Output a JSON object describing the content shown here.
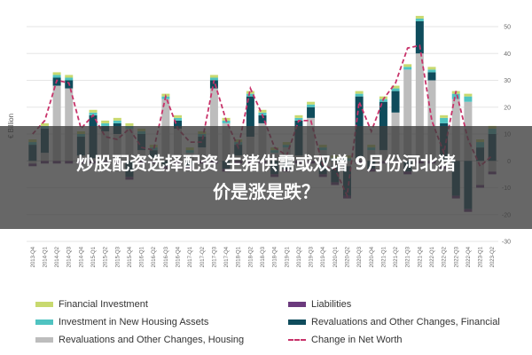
{
  "banner": {
    "line1": "炒股配资选择配资 生猪供需或双增 9月份河北猪",
    "line2": "价是涨是跌？"
  },
  "legend": [
    {
      "key": "financial_investment",
      "label": "Financial Investment",
      "color": "#c8d96f",
      "style": "bar"
    },
    {
      "key": "liabilities",
      "label": "Liabilities",
      "color": "#6b3a7d",
      "style": "bar"
    },
    {
      "key": "investment_new_housing",
      "label": "Investment in New Housing Assets",
      "color": "#4fc3c1",
      "style": "bar"
    },
    {
      "key": "reval_financial",
      "label": "Revaluations and Other Changes, Financial",
      "color": "#0f4c5c",
      "style": "bar"
    },
    {
      "key": "reval_housing",
      "label": "Revaluations and Other Changes, Housing",
      "color": "#bdbdbd",
      "style": "bar"
    },
    {
      "key": "net_worth",
      "label": "Change in Net Worth",
      "color": "#c8336a",
      "style": "dash"
    }
  ],
  "chart_data": {
    "type": "bar",
    "ylabel": "€ Billion",
    "ylim": [
      -30,
      50
    ],
    "yticks": [
      50,
      40,
      30,
      20,
      10,
      0,
      -10,
      -20,
      -30
    ],
    "categories": [
      "2013-Q4",
      "2014-Q1",
      "2014-Q2",
      "2014-Q3",
      "2014-Q4",
      "2015-Q1",
      "2015-Q2",
      "2015-Q3",
      "2015-Q4",
      "2016-Q1",
      "2016-Q2",
      "2016-Q3",
      "2016-Q4",
      "2017-Q1",
      "2017-Q2",
      "2017-Q3",
      "2017-Q4",
      "2018-Q1",
      "2018-Q2",
      "2018-Q3",
      "2018-Q4",
      "2019-Q1",
      "2019-Q2",
      "2019-Q3",
      "2019-Q4",
      "2020-Q1",
      "2020-Q2",
      "2020-Q3",
      "2020-Q4",
      "2021-Q1",
      "2021-Q2",
      "2021-Q3",
      "2021-Q4",
      "2022-Q1",
      "2022-Q2",
      "2022-Q3",
      "2022-Q4",
      "2023-Q1",
      "2023-Q2"
    ],
    "series": [
      {
        "name": "Financial Investment",
        "key": "financial_investment",
        "values": [
          1,
          1,
          1,
          1,
          1,
          1,
          1,
          1,
          1,
          1,
          1,
          1,
          1,
          1,
          1,
          1,
          1,
          1,
          1,
          1,
          1,
          1,
          1,
          1,
          1,
          1,
          1,
          1,
          1,
          1,
          1,
          1,
          1,
          1,
          1,
          1,
          1,
          1,
          1
        ]
      },
      {
        "name": "Liabilities",
        "key": "liabilities",
        "values": [
          -1,
          -1,
          -1,
          -1,
          -1,
          -1,
          -1,
          -1,
          -1,
          -1,
          -1,
          -1,
          -1,
          -1,
          -1,
          -1,
          -1,
          -1,
          -1,
          -1,
          -1,
          -1,
          -1,
          -1,
          -1,
          -1,
          -1,
          -1,
          -1,
          -1,
          -1,
          -1,
          -1,
          -1,
          -1,
          -1,
          -1,
          -1,
          -1
        ]
      },
      {
        "name": "Investment in New Housing Assets",
        "key": "investment_new_housing",
        "values": [
          1,
          1,
          1,
          1,
          1,
          1,
          1,
          1,
          1,
          1,
          1,
          1,
          1,
          1,
          1,
          1,
          1,
          1,
          1,
          1,
          1,
          1,
          1,
          1,
          1,
          1,
          1,
          1,
          1,
          1,
          1,
          1,
          1,
          1,
          2,
          2,
          2,
          2,
          2
        ]
      },
      {
        "name": "Revaluations and Other Changes, Financial",
        "key": "reval_financial",
        "values": [
          6,
          9,
          3,
          3,
          7,
          16,
          2,
          4,
          -6,
          6,
          3,
          -2,
          3,
          -2,
          4,
          3,
          -3,
          4,
          15,
          3,
          -5,
          -3,
          13,
          4,
          -5,
          -6,
          -11,
          23,
          -3,
          18,
          8,
          -4,
          12,
          3,
          14,
          -13,
          -18,
          5,
          10
        ]
      },
      {
        "name": "Revaluations and Other Changes, Housing",
        "key": "reval_housing",
        "values": [
          -1,
          3,
          28,
          27,
          2,
          1,
          11,
          10,
          12,
          4,
          1,
          23,
          12,
          3,
          5,
          27,
          14,
          2,
          9,
          14,
          3,
          5,
          2,
          16,
          4,
          -2,
          -2,
          1,
          4,
          4,
          18,
          34,
          40,
          30,
          -2,
          23,
          22,
          -9,
          -4
        ]
      },
      {
        "name": "Change in Net Worth",
        "key": "net_worth",
        "values": [
          10,
          15,
          30,
          29,
          12,
          17,
          9,
          8,
          12,
          5,
          4,
          24,
          12,
          7,
          7,
          30,
          15,
          5,
          27,
          17,
          5,
          2,
          15,
          15,
          -2,
          -3,
          -13,
          22,
          11,
          23,
          29,
          42,
          43,
          15,
          3,
          26,
          8,
          -2,
          2
        ]
      }
    ]
  }
}
